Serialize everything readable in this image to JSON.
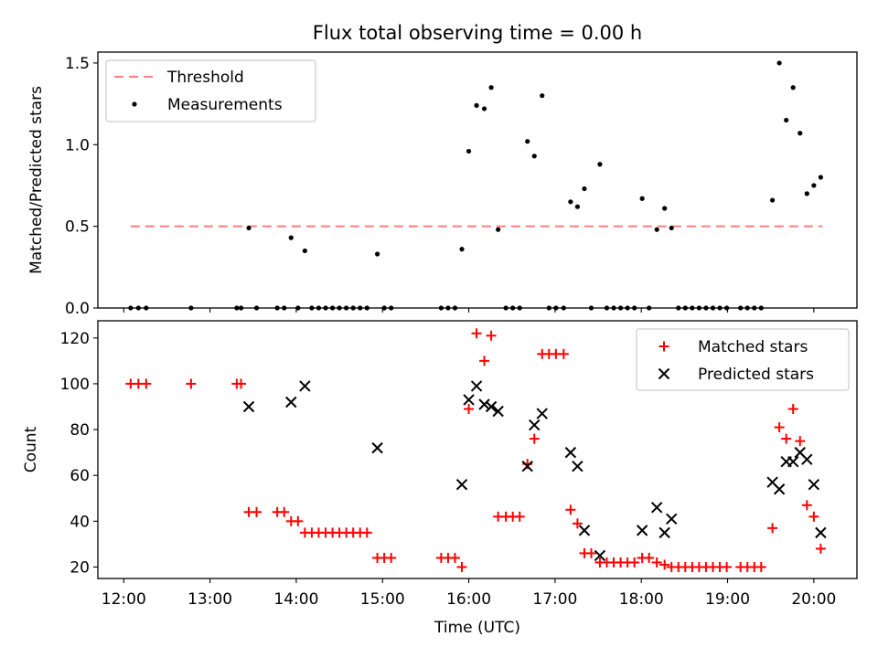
{
  "chart_data": [
    {
      "type": "scatter",
      "title": "Flux total observing time = 0.00 h",
      "xlabel": "",
      "ylabel": "Matched/Predicted stars",
      "xlim": [
        11.7,
        20.5
      ],
      "ylim": [
        0,
        1.5667
      ],
      "xticks": [
        12,
        13,
        14,
        15,
        16,
        17,
        18,
        19,
        20
      ],
      "yticks": [
        0.0,
        0.5,
        1.0,
        1.5
      ],
      "ytick_labels": [
        "0.0",
        "0.5",
        "1.0",
        "1.5"
      ],
      "legend": {
        "placement": "top-left"
      },
      "threshold": {
        "name": "Threshold",
        "value": 0.5,
        "x_range": [
          12.08,
          20.1
        ],
        "color": "#ff7f7f",
        "style": "dashed"
      },
      "series": [
        {
          "name": "Measurements",
          "color": "#000000",
          "marker": "dot",
          "points": [
            [
              12.08,
              0
            ],
            [
              12.17,
              0
            ],
            [
              12.26,
              0
            ],
            [
              12.78,
              0
            ],
            [
              13.31,
              0
            ],
            [
              13.36,
              0
            ],
            [
              13.45,
              0.49
            ],
            [
              13.54,
              0
            ],
            [
              13.78,
              0
            ],
            [
              13.86,
              0
            ],
            [
              13.94,
              0.43
            ],
            [
              14.02,
              0
            ],
            [
              14.1,
              0.35
            ],
            [
              14.18,
              0
            ],
            [
              14.26,
              0
            ],
            [
              14.34,
              0
            ],
            [
              14.42,
              0
            ],
            [
              14.5,
              0
            ],
            [
              14.58,
              0
            ],
            [
              14.66,
              0
            ],
            [
              14.74,
              0
            ],
            [
              14.82,
              0
            ],
            [
              14.94,
              0.33
            ],
            [
              15.02,
              0
            ],
            [
              15.1,
              0
            ],
            [
              15.68,
              0
            ],
            [
              15.76,
              0
            ],
            [
              15.84,
              0
            ],
            [
              15.92,
              0.36
            ],
            [
              16.0,
              0.96
            ],
            [
              16.09,
              1.24
            ],
            [
              16.18,
              1.22
            ],
            [
              16.26,
              1.35
            ],
            [
              16.34,
              0.48
            ],
            [
              16.43,
              0
            ],
            [
              16.51,
              0
            ],
            [
              16.59,
              0
            ],
            [
              16.68,
              1.02
            ],
            [
              16.76,
              0.93
            ],
            [
              16.85,
              1.3
            ],
            [
              16.93,
              0
            ],
            [
              17.01,
              0
            ],
            [
              17.1,
              0
            ],
            [
              17.18,
              0.65
            ],
            [
              17.26,
              0.62
            ],
            [
              17.34,
              0.73
            ],
            [
              17.42,
              0
            ],
            [
              17.52,
              0.88
            ],
            [
              17.6,
              0
            ],
            [
              17.68,
              0
            ],
            [
              17.76,
              0
            ],
            [
              17.84,
              0
            ],
            [
              17.92,
              0
            ],
            [
              18.01,
              0.67
            ],
            [
              18.09,
              0
            ],
            [
              18.18,
              0.48
            ],
            [
              18.27,
              0.61
            ],
            [
              18.35,
              0.49
            ],
            [
              18.43,
              0
            ],
            [
              18.51,
              0
            ],
            [
              18.59,
              0
            ],
            [
              18.67,
              0
            ],
            [
              18.75,
              0
            ],
            [
              18.83,
              0
            ],
            [
              18.91,
              0
            ],
            [
              18.99,
              0
            ],
            [
              19.15,
              0
            ],
            [
              19.23,
              0
            ],
            [
              19.31,
              0
            ],
            [
              19.39,
              0
            ],
            [
              19.52,
              0.66
            ],
            [
              19.6,
              1.5
            ],
            [
              19.68,
              1.15
            ],
            [
              19.76,
              1.35
            ],
            [
              19.84,
              1.07
            ],
            [
              19.92,
              0.7
            ],
            [
              20.0,
              0.75
            ],
            [
              20.08,
              0.8
            ]
          ]
        }
      ]
    },
    {
      "type": "scatter",
      "title": "",
      "xlabel": "Time (UTC)",
      "ylabel": "Count",
      "xlim": [
        11.7,
        20.5
      ],
      "ylim": [
        15,
        127.5
      ],
      "xticks": [
        12,
        13,
        14,
        15,
        16,
        17,
        18,
        19,
        20
      ],
      "xtick_labels": [
        "12:00",
        "13:00",
        "14:00",
        "15:00",
        "16:00",
        "17:00",
        "18:00",
        "19:00",
        "20:00"
      ],
      "yticks": [
        20,
        40,
        60,
        80,
        100,
        120
      ],
      "ytick_labels": [
        "20",
        "40",
        "60",
        "80",
        "100",
        "120"
      ],
      "legend": {
        "placement": "top-right"
      },
      "series": [
        {
          "name": "Matched stars",
          "color": "#ff0000",
          "marker": "plus",
          "points": [
            [
              12.08,
              100
            ],
            [
              12.17,
              100
            ],
            [
              12.26,
              100
            ],
            [
              12.78,
              100
            ],
            [
              13.31,
              100
            ],
            [
              13.36,
              100
            ],
            [
              13.45,
              44
            ],
            [
              13.54,
              44
            ],
            [
              13.78,
              44
            ],
            [
              13.86,
              44
            ],
            [
              13.94,
              40
            ],
            [
              14.02,
              40
            ],
            [
              14.1,
              35
            ],
            [
              14.18,
              35
            ],
            [
              14.26,
              35
            ],
            [
              14.34,
              35
            ],
            [
              14.42,
              35
            ],
            [
              14.5,
              35
            ],
            [
              14.58,
              35
            ],
            [
              14.66,
              35
            ],
            [
              14.74,
              35
            ],
            [
              14.82,
              35
            ],
            [
              14.94,
              24
            ],
            [
              15.02,
              24
            ],
            [
              15.1,
              24
            ],
            [
              15.68,
              24
            ],
            [
              15.76,
              24
            ],
            [
              15.84,
              24
            ],
            [
              15.92,
              20
            ],
            [
              16.0,
              89
            ],
            [
              16.09,
              122
            ],
            [
              16.18,
              110
            ],
            [
              16.26,
              121
            ],
            [
              16.34,
              42
            ],
            [
              16.43,
              42
            ],
            [
              16.51,
              42
            ],
            [
              16.59,
              42
            ],
            [
              16.68,
              65
            ],
            [
              16.76,
              76
            ],
            [
              16.85,
              113
            ],
            [
              16.93,
              113
            ],
            [
              17.01,
              113
            ],
            [
              17.1,
              113
            ],
            [
              17.18,
              45
            ],
            [
              17.26,
              39
            ],
            [
              17.34,
              26
            ],
            [
              17.42,
              26
            ],
            [
              17.52,
              22
            ],
            [
              17.6,
              22
            ],
            [
              17.68,
              22
            ],
            [
              17.76,
              22
            ],
            [
              17.84,
              22
            ],
            [
              17.92,
              22
            ],
            [
              18.01,
              24
            ],
            [
              18.09,
              24
            ],
            [
              18.18,
              22
            ],
            [
              18.27,
              21
            ],
            [
              18.35,
              20
            ],
            [
              18.43,
              20
            ],
            [
              18.51,
              20
            ],
            [
              18.59,
              20
            ],
            [
              18.67,
              20
            ],
            [
              18.75,
              20
            ],
            [
              18.83,
              20
            ],
            [
              18.91,
              20
            ],
            [
              18.99,
              20
            ],
            [
              19.15,
              20
            ],
            [
              19.23,
              20
            ],
            [
              19.31,
              20
            ],
            [
              19.39,
              20
            ],
            [
              19.52,
              37
            ],
            [
              19.6,
              81
            ],
            [
              19.68,
              76
            ],
            [
              19.76,
              89
            ],
            [
              19.84,
              75
            ],
            [
              19.92,
              47
            ],
            [
              20.0,
              42
            ],
            [
              20.08,
              28
            ]
          ]
        },
        {
          "name": "Predicted stars",
          "color": "#000000",
          "marker": "x",
          "points": [
            [
              13.45,
              90
            ],
            [
              13.94,
              92
            ],
            [
              14.1,
              99
            ],
            [
              14.94,
              72
            ],
            [
              15.92,
              56
            ],
            [
              16.0,
              93
            ],
            [
              16.09,
              99
            ],
            [
              16.18,
              91
            ],
            [
              16.26,
              90
            ],
            [
              16.34,
              88
            ],
            [
              16.68,
              64
            ],
            [
              16.76,
              82
            ],
            [
              16.85,
              87
            ],
            [
              17.18,
              70
            ],
            [
              17.26,
              64
            ],
            [
              17.34,
              36
            ],
            [
              17.52,
              25
            ],
            [
              18.01,
              36
            ],
            [
              18.18,
              46
            ],
            [
              18.27,
              35
            ],
            [
              18.35,
              41
            ],
            [
              19.52,
              57
            ],
            [
              19.6,
              54
            ],
            [
              19.68,
              66
            ],
            [
              19.76,
              66
            ],
            [
              19.84,
              70
            ],
            [
              19.92,
              67
            ],
            [
              20.0,
              56
            ],
            [
              20.08,
              35
            ]
          ]
        }
      ]
    }
  ]
}
